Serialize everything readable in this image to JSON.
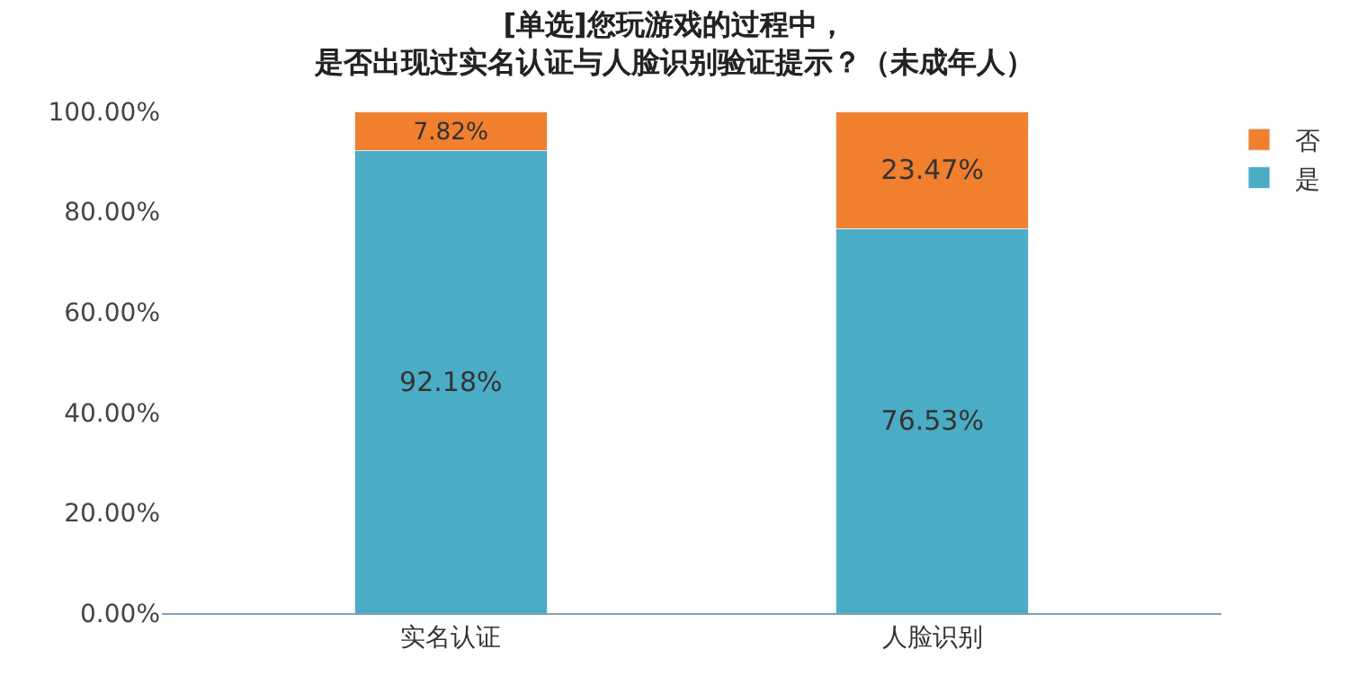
{
  "chart_data": {
    "type": "bar",
    "stacked": true,
    "title": "[单选]您玩游戏的过程中，是否出现过实名认证与人脸识别验证提示？（未成年人）",
    "categories": [
      "实名认证",
      "人脸识别"
    ],
    "series": [
      {
        "name": "是",
        "color": "#4bacc6",
        "values": [
          92.18,
          76.53
        ],
        "value_labels": [
          "92.18%",
          "76.53%"
        ]
      },
      {
        "name": "否",
        "color": "#f07f2e",
        "values": [
          7.82,
          23.47
        ],
        "value_labels": [
          "7.82%",
          "23.47%"
        ]
      }
    ],
    "ylim": [
      0,
      100
    ],
    "yticks": [
      {
        "value": 0,
        "label": "0.00%"
      },
      {
        "value": 20,
        "label": "20.00%"
      },
      {
        "value": 40,
        "label": "40.00%"
      },
      {
        "value": 60,
        "label": "60.00%"
      },
      {
        "value": 80,
        "label": "80.00%"
      },
      {
        "value": 100,
        "label": "100.00%"
      }
    ],
    "legend": "top right"
  }
}
